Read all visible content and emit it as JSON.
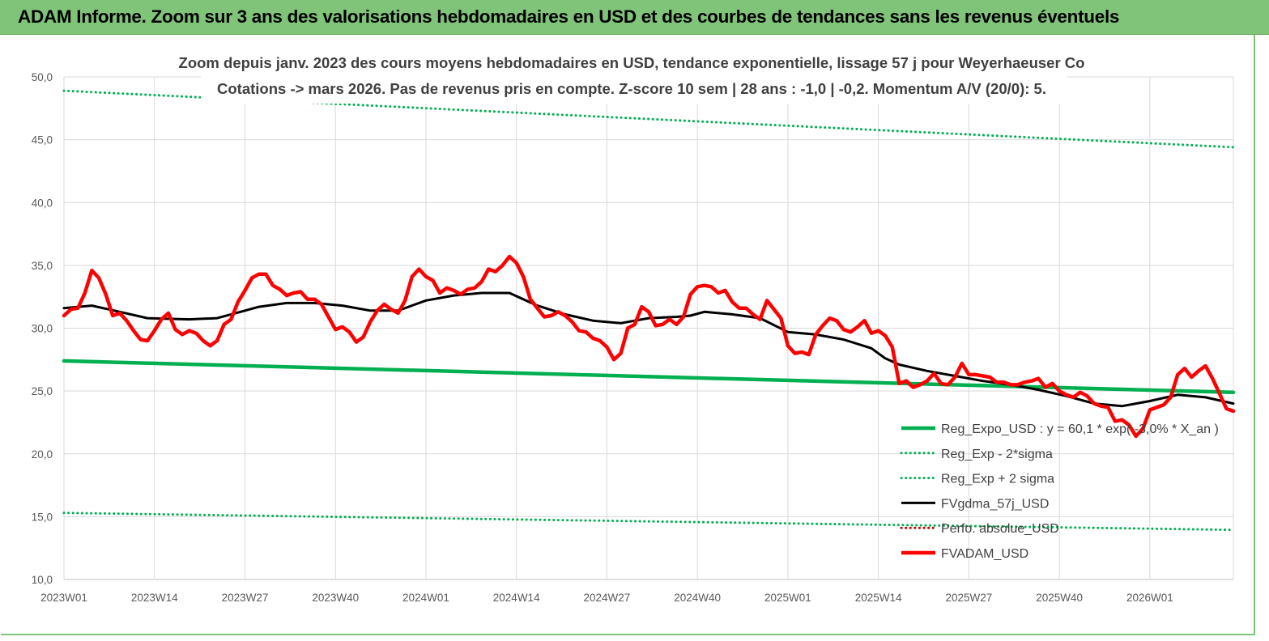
{
  "header": {
    "title": "ADAM Informe. Zoom sur 3 ans des valorisations hebdomadaires en USD et des courbes de tendances sans les revenus éventuels"
  },
  "chart_data": {
    "type": "line",
    "title_line1": "Zoom depuis janv. 2023 des cours moyens hebdomadaires en USD, tendance exponentielle, lissage 57 j pour Weyerhaeuser Co",
    "title_line2": "Cotations -> mars 2026. Pas de revenus pris en  compte. Z-score 10 sem  | 28 ans : -1,0 | -0,2. Momentum A/V (20/0): 5.",
    "ylim": [
      10,
      50
    ],
    "yticks": [
      "50,0",
      "45,0",
      "40,0",
      "35,0",
      "30,0",
      "25,0",
      "20,0",
      "15,0",
      "10,0"
    ],
    "xlim": [
      0,
      168
    ],
    "xticks": [
      {
        "x": 0,
        "label": "2023W01"
      },
      {
        "x": 13,
        "label": "2023W14"
      },
      {
        "x": 26,
        "label": "2023W27"
      },
      {
        "x": 39,
        "label": "2023W40"
      },
      {
        "x": 52,
        "label": "2024W01"
      },
      {
        "x": 65,
        "label": "2024W14"
      },
      {
        "x": 78,
        "label": "2024W27"
      },
      {
        "x": 91,
        "label": "2024W40"
      },
      {
        "x": 104,
        "label": "2025W01"
      },
      {
        "x": 117,
        "label": "2025W14"
      },
      {
        "x": 130,
        "label": "2025W27"
      },
      {
        "x": 143,
        "label": "2025W40"
      },
      {
        "x": 156,
        "label": "2026W01"
      }
    ],
    "legend_position": "bottom-right",
    "series": [
      {
        "name": "Reg_Expo_USD : y = 60,1 * exp( -3,0% *  X_an )",
        "color": "#00b050",
        "style": "solid-thick",
        "x": [
          0,
          168
        ],
        "y": [
          27.4,
          24.9
        ]
      },
      {
        "name": "Reg_Exp - 2*sigma",
        "color": "#00b050",
        "style": "dotted",
        "x": [
          0,
          168
        ],
        "y": [
          15.3,
          13.95
        ]
      },
      {
        "name": "Reg_Exp + 2 sigma",
        "color": "#00b050",
        "style": "dotted",
        "x": [
          0,
          168
        ],
        "y": [
          48.9,
          44.4
        ]
      },
      {
        "name": "FVgdma_57j_USD",
        "color": "#000000",
        "style": "solid",
        "x": [
          0,
          4,
          8,
          12,
          18,
          22,
          26,
          28,
          32,
          36,
          40,
          44,
          48,
          52,
          56,
          60,
          64,
          68,
          72,
          76,
          80,
          84,
          88,
          90,
          92,
          96,
          100,
          104,
          108,
          112,
          116,
          118,
          120,
          124,
          128,
          132,
          136,
          140,
          144,
          148,
          152,
          156,
          160,
          164,
          168
        ],
        "y": [
          31.6,
          31.8,
          31.3,
          30.8,
          30.7,
          30.8,
          31.4,
          31.7,
          32.0,
          32.0,
          31.8,
          31.4,
          31.4,
          32.2,
          32.6,
          32.8,
          32.8,
          31.8,
          31.1,
          30.6,
          30.4,
          30.8,
          30.9,
          31.0,
          31.3,
          31.1,
          30.8,
          29.7,
          29.5,
          29.1,
          28.4,
          27.6,
          27.1,
          26.6,
          26.2,
          25.8,
          25.5,
          25.1,
          24.6,
          24.0,
          23.8,
          24.2,
          24.7,
          24.5,
          24.0
        ]
      },
      {
        "name": "Perfo. absolue_USD",
        "color": "#c00000",
        "style": "dotted",
        "x": [],
        "y": []
      },
      {
        "name": "FVADAM_USD",
        "color": "#ff0000",
        "style": "solid-thick",
        "x": [
          0,
          1,
          2,
          3,
          4,
          5,
          6,
          7,
          8,
          9,
          10,
          11,
          12,
          13,
          14,
          15,
          16,
          17,
          18,
          19,
          20,
          21,
          22,
          23,
          24,
          25,
          26,
          27,
          28,
          29,
          30,
          31,
          32,
          33,
          34,
          35,
          36,
          37,
          38,
          39,
          40,
          41,
          42,
          43,
          44,
          45,
          46,
          47,
          48,
          49,
          50,
          51,
          52,
          53,
          54,
          55,
          56,
          57,
          58,
          59,
          60,
          61,
          62,
          63,
          64,
          65,
          66,
          67,
          68,
          69,
          70,
          71,
          72,
          73,
          74,
          75,
          76,
          77,
          78,
          79,
          80,
          81,
          82,
          83,
          84,
          85,
          86,
          87,
          88,
          89,
          90,
          91,
          92,
          93,
          94,
          95,
          96,
          97,
          98,
          99,
          100,
          101,
          102,
          103,
          104,
          105,
          106,
          107,
          108,
          109,
          110,
          111,
          112,
          113,
          114,
          115,
          116,
          117,
          118,
          119,
          120,
          121,
          122,
          123,
          124,
          125,
          126,
          127,
          128,
          129,
          130,
          131,
          132,
          133,
          134,
          135,
          136,
          137,
          138,
          139,
          140,
          141,
          142,
          143,
          144,
          145,
          146,
          147,
          148,
          149,
          150,
          151,
          152,
          153,
          154,
          155,
          156,
          157,
          158,
          159,
          160,
          161,
          162,
          163,
          164,
          165,
          166,
          167,
          168
        ],
        "y": [
          31.0,
          31.5,
          31.6,
          32.8,
          34.6,
          34.0,
          32.7,
          31.0,
          31.2,
          30.6,
          29.8,
          29.1,
          29.0,
          29.8,
          30.7,
          31.2,
          29.9,
          29.5,
          29.8,
          29.6,
          29.0,
          28.6,
          29.0,
          30.3,
          30.7,
          32.1,
          33.0,
          34.0,
          34.3,
          34.3,
          33.4,
          33.1,
          32.6,
          32.8,
          32.9,
          32.3,
          32.3,
          31.9,
          30.9,
          29.9,
          30.1,
          29.7,
          28.9,
          29.3,
          30.5,
          31.4,
          31.9,
          31.5,
          31.2,
          32.2,
          34.1,
          34.7,
          34.1,
          33.8,
          32.8,
          33.2,
          33.0,
          32.7,
          33.1,
          33.2,
          33.7,
          34.7,
          34.5,
          35.0,
          35.7,
          35.2,
          34.1,
          32.3,
          31.6,
          30.9,
          31.0,
          31.3,
          31.0,
          30.5,
          29.8,
          29.7,
          29.2,
          29.0,
          28.5,
          27.5,
          28.0,
          30.0,
          30.3,
          31.7,
          31.3,
          30.2,
          30.3,
          30.7,
          30.3,
          30.9,
          32.7,
          33.3,
          33.4,
          33.3,
          32.8,
          33.0,
          32.1,
          31.6,
          31.6,
          31.1,
          30.7,
          32.2,
          31.5,
          30.8,
          28.6,
          28.0,
          28.1,
          27.9,
          29.5,
          30.2,
          30.8,
          30.6,
          29.9,
          29.7,
          30.1,
          30.6,
          29.6,
          29.8,
          29.4,
          28.5,
          25.6,
          25.8,
          25.3,
          25.5,
          25.8,
          26.4,
          25.6,
          25.5,
          26.1,
          27.2,
          26.3,
          26.3,
          26.2,
          26.1,
          25.7,
          25.7,
          25.5,
          25.5,
          25.7,
          25.8,
          26.0,
          25.3,
          25.6,
          25.0,
          24.7,
          24.5,
          24.9,
          24.6,
          24.0,
          23.8,
          23.7,
          22.6,
          22.7,
          22.3,
          21.4,
          22.0,
          23.5,
          23.7,
          23.9,
          24.5,
          26.3,
          26.8,
          26.1,
          26.6,
          27.0,
          26.0,
          24.8,
          23.6,
          23.4
        ]
      }
    ]
  }
}
